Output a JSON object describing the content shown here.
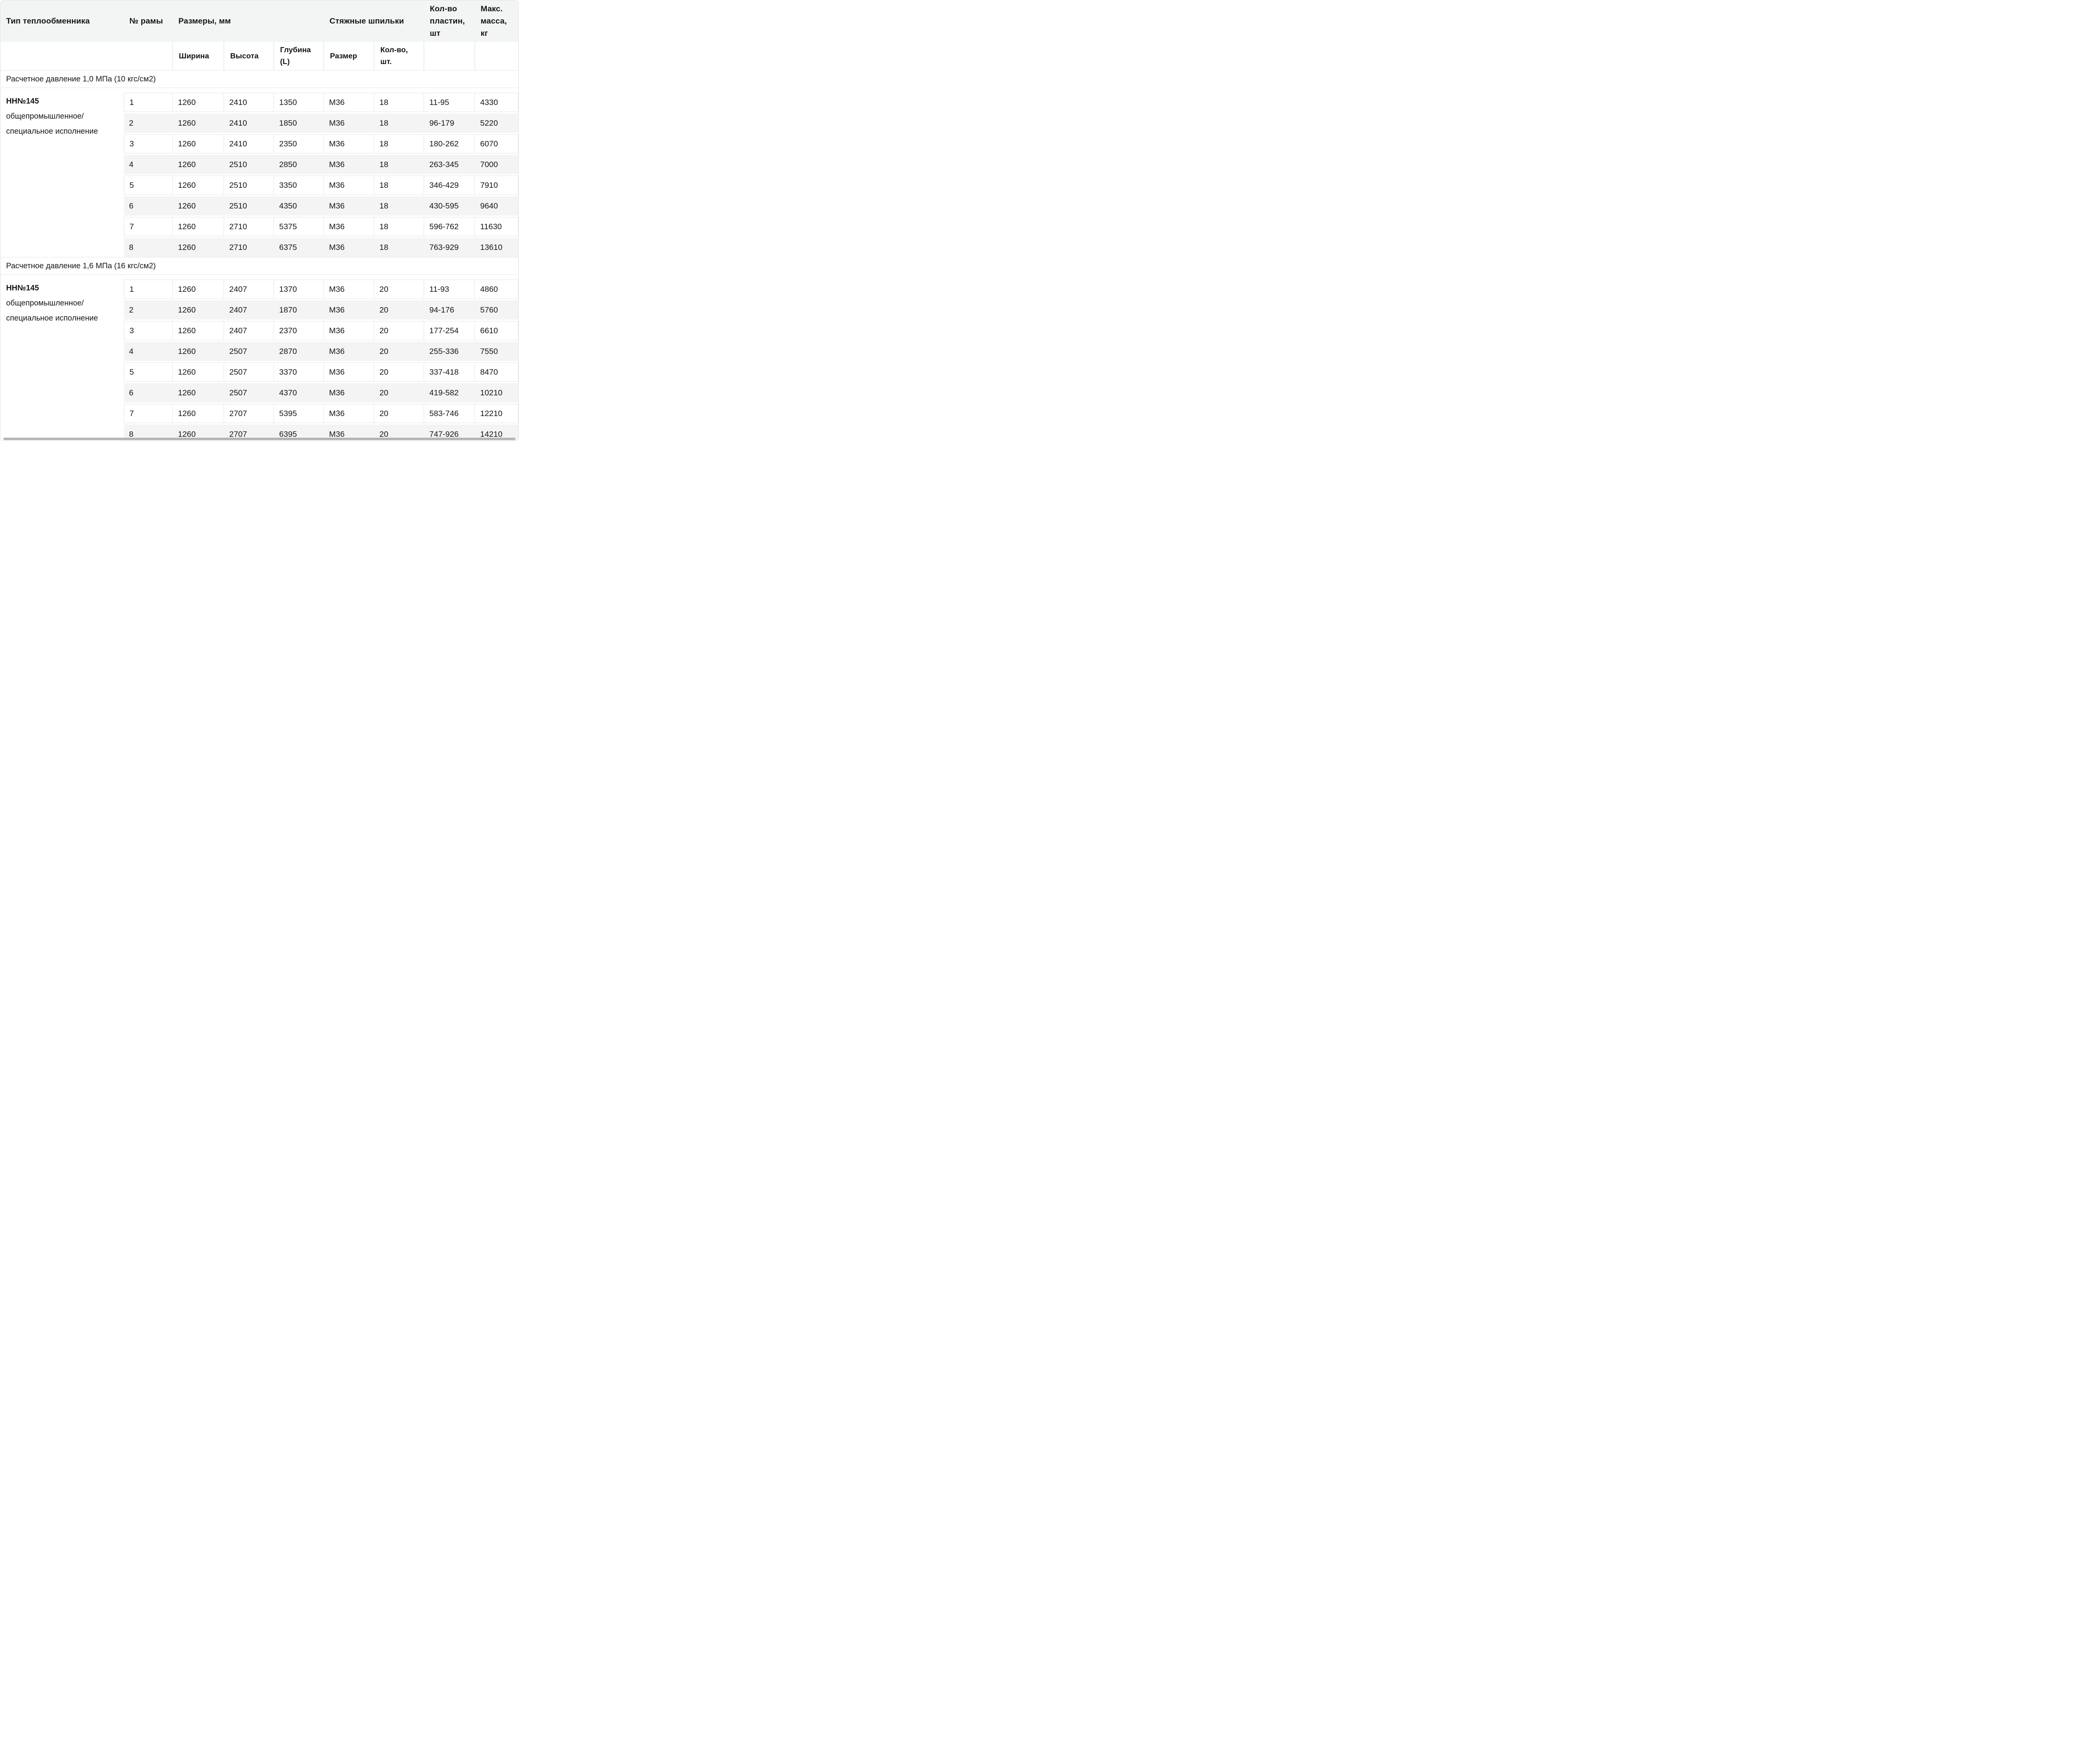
{
  "colors": {
    "header_bg": "#f3f4f4",
    "row_alt_bg": "#f4f4f5",
    "cell_border": "#e7e8ea",
    "container_border": "#e3e3e5",
    "text": "#141417",
    "scrollbar": "#b4b4b7"
  },
  "table": {
    "header": {
      "type": "Тип теплообменника",
      "frame": "№ рамы",
      "dimensions": "Размеры, мм",
      "studs": "Стяжные шпильки",
      "plates": "Кол-во пластин, шт",
      "max_mass": "Макс. масса, кг"
    },
    "subheader": {
      "width": "Ширина",
      "height": "Высота",
      "depth": "Глубина (L)",
      "stud_size": "Размер",
      "stud_qty": "Кол-во, шт."
    },
    "sections": [
      {
        "title": "Расчетное давление 1,0 МПа (10 кгс/см2)",
        "type_name": "НН№145",
        "type_desc": [
          "общепромышленное/",
          "специальное исполнение"
        ],
        "rows": [
          [
            "1",
            "1260",
            "2410",
            "1350",
            "М36",
            "18",
            "11-95",
            "4330"
          ],
          [
            "2",
            "1260",
            "2410",
            "1850",
            "М36",
            "18",
            "96-179",
            "5220"
          ],
          [
            "3",
            "1260",
            "2410",
            "2350",
            "М36",
            "18",
            "180-262",
            "6070"
          ],
          [
            "4",
            "1260",
            "2510",
            "2850",
            "М36",
            "18",
            "263-345",
            "7000"
          ],
          [
            "5",
            "1260",
            "2510",
            "3350",
            "М36",
            "18",
            "346-429",
            "7910"
          ],
          [
            "6",
            "1260",
            "2510",
            "4350",
            "М36",
            "18",
            "430-595",
            "9640"
          ],
          [
            "7",
            "1260",
            "2710",
            "5375",
            "М36",
            "18",
            "596-762",
            "11630"
          ],
          [
            "8",
            "1260",
            "2710",
            "6375",
            "М36",
            "18",
            "763-929",
            "13610"
          ]
        ]
      },
      {
        "title": "Расчетное давление 1,6 МПа (16 кгс/см2)",
        "type_name": "НН№145",
        "type_desc": [
          "общепромышленное/",
          "специальное исполнение"
        ],
        "rows": [
          [
            "1",
            "1260",
            "2407",
            "1370",
            "М36",
            "20",
            "11-93",
            "4860"
          ],
          [
            "2",
            "1260",
            "2407",
            "1870",
            "М36",
            "20",
            "94-176",
            "5760"
          ],
          [
            "3",
            "1260",
            "2407",
            "2370",
            "М36",
            "20",
            "177-254",
            "6610"
          ],
          [
            "4",
            "1260",
            "2507",
            "2870",
            "М36",
            "20",
            "255-336",
            "7550"
          ],
          [
            "5",
            "1260",
            "2507",
            "3370",
            "М36",
            "20",
            "337-418",
            "8470"
          ],
          [
            "6",
            "1260",
            "2507",
            "4370",
            "М36",
            "20",
            "419-582",
            "10210"
          ],
          [
            "7",
            "1260",
            "2707",
            "5395",
            "М36",
            "20",
            "583-746",
            "12210"
          ],
          [
            "8",
            "1260",
            "2707",
            "6395",
            "М36",
            "20",
            "747-926",
            "14210"
          ]
        ]
      }
    ]
  }
}
